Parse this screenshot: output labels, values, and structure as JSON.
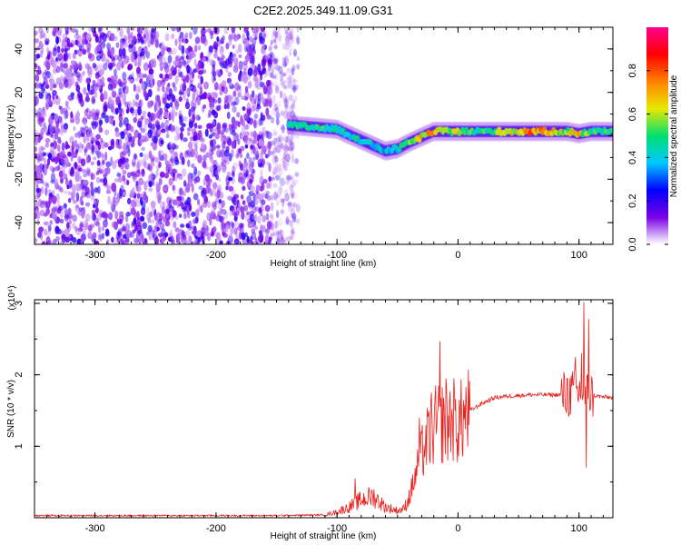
{
  "title": "C2E2.2025.349.11.09.G31",
  "colors": {
    "snr_line": "#e8201c",
    "axis": "#000000",
    "noise": "#8a2be2",
    "colorbar_stops": [
      "#ffffff",
      "#7a00e6",
      "#0000ff",
      "#00c8ff",
      "#00e070",
      "#e8e800",
      "#ff8000",
      "#ff0000",
      "#ff0090"
    ]
  },
  "chart_data": [
    {
      "type": "heatmap",
      "xlabel": "Height of straight line (km)",
      "ylabel": "Frequency (Hz)",
      "xlim": [
        -350,
        128
      ],
      "ylim": [
        -50,
        50
      ],
      "xticks": [
        -300,
        -200,
        -100,
        0,
        100
      ],
      "yticks": [
        -40,
        -20,
        0,
        20,
        40
      ],
      "colorbar": {
        "label": "Normalized spectral amplitude",
        "range": [
          0,
          1
        ],
        "ticks": [
          "0.0",
          "0.2",
          "0.4",
          "0.6",
          "0.8"
        ]
      },
      "signal_track": {
        "description": "Strong narrowband signal near 0 Hz from about -140 km to the right edge",
        "x": [
          -140,
          -120,
          -100,
          -80,
          -60,
          -50,
          -40,
          -20,
          0,
          20,
          60,
          90,
          100,
          110,
          128
        ],
        "freq": [
          5,
          4,
          3,
          -2,
          -7,
          -6,
          -3,
          2,
          2,
          2,
          2,
          2,
          1,
          2,
          2
        ],
        "amplitude": [
          0.45,
          0.5,
          0.5,
          0.45,
          0.4,
          0.45,
          0.6,
          0.8,
          0.6,
          0.5,
          0.8,
          0.6,
          0.7,
          0.5,
          0.6
        ]
      },
      "noise_region": {
        "x_range": [
          -350,
          -140
        ],
        "amplitude": [
          0.0,
          0.25
        ]
      }
    },
    {
      "type": "line",
      "xlabel": "Height of straight line (km)",
      "ylabel": "SNR (10 * v/v)",
      "yscale_label": "(x10⁴)",
      "xlim": [
        -350,
        128
      ],
      "ylim": [
        0,
        3.05
      ],
      "xticks": [
        -300,
        -200,
        -100,
        0,
        100
      ],
      "yticks": [
        1,
        2,
        3
      ],
      "envelope": {
        "x": [
          -350,
          -150,
          -110,
          -100,
          -90,
          -80,
          -70,
          -60,
          -50,
          -45,
          -40,
          -35,
          -30,
          -25,
          -20,
          -15,
          -10,
          -5,
          0,
          10,
          20,
          30,
          40,
          60,
          80,
          90,
          95,
          100,
          105,
          110,
          115,
          120,
          128
        ],
        "y": [
          0.03,
          0.03,
          0.04,
          0.08,
          0.15,
          0.25,
          0.3,
          0.15,
          0.1,
          0.12,
          0.3,
          0.6,
          0.9,
          1.1,
          1.25,
          1.35,
          1.3,
          1.4,
          1.3,
          1.5,
          1.6,
          1.68,
          1.7,
          1.72,
          1.72,
          1.72,
          1.74,
          1.75,
          1.74,
          1.72,
          1.7,
          1.69,
          1.68
        ]
      },
      "spikes": [
        {
          "x": -85,
          "y": 0.55
        },
        {
          "x": -32,
          "y": 1.4
        },
        {
          "x": -22,
          "y": 1.75
        },
        {
          "x": -15,
          "y": 2.47
        },
        {
          "x": -10,
          "y": 1.95
        },
        {
          "x": -3,
          "y": 1.8
        },
        {
          "x": 90,
          "y": 1.95
        },
        {
          "x": 97,
          "y": 2.25
        },
        {
          "x": 102,
          "y": 2.3
        },
        {
          "x": 104,
          "y": 3.02
        },
        {
          "x": 106,
          "y": 0.7
        },
        {
          "x": 108,
          "y": 2.78
        }
      ]
    }
  ]
}
